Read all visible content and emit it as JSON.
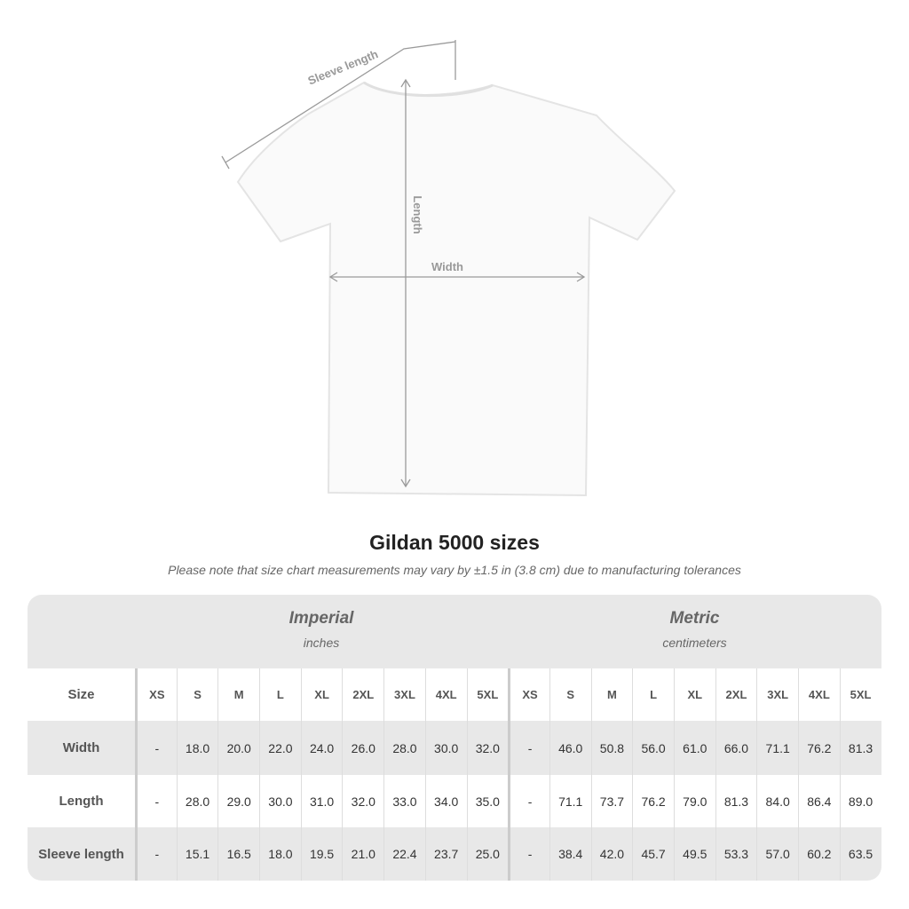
{
  "diagram": {
    "sleeve_label": "Sleeve length",
    "length_label": "Length",
    "width_label": "Width"
  },
  "title": "Gildan 5000 sizes",
  "note": "Please note that size chart measurements may vary by ±1.5 in (3.8 cm) due to manufacturing tolerances",
  "table": {
    "imperial": {
      "heading": "Imperial",
      "unit": "inches"
    },
    "metric": {
      "heading": "Metric",
      "unit": "centimeters"
    },
    "size_label": "Size",
    "sizes": [
      "XS",
      "S",
      "M",
      "L",
      "XL",
      "2XL",
      "3XL",
      "4XL",
      "5XL"
    ],
    "rows": [
      {
        "label": "Width",
        "imperial": [
          "-",
          "18.0",
          "20.0",
          "22.0",
          "24.0",
          "26.0",
          "28.0",
          "30.0",
          "32.0"
        ],
        "metric": [
          "-",
          "46.0",
          "50.8",
          "56.0",
          "61.0",
          "66.0",
          "71.1",
          "76.2",
          "81.3"
        ]
      },
      {
        "label": "Length",
        "imperial": [
          "-",
          "28.0",
          "29.0",
          "30.0",
          "31.0",
          "32.0",
          "33.0",
          "34.0",
          "35.0"
        ],
        "metric": [
          "-",
          "71.1",
          "73.7",
          "76.2",
          "79.0",
          "81.3",
          "84.0",
          "86.4",
          "89.0"
        ]
      },
      {
        "label": "Sleeve length",
        "imperial": [
          "-",
          "15.1",
          "16.5",
          "18.0",
          "19.5",
          "21.0",
          "22.4",
          "23.7",
          "25.0"
        ],
        "metric": [
          "-",
          "38.4",
          "42.0",
          "45.7",
          "49.5",
          "53.3",
          "57.0",
          "60.2",
          "63.5"
        ]
      }
    ]
  }
}
